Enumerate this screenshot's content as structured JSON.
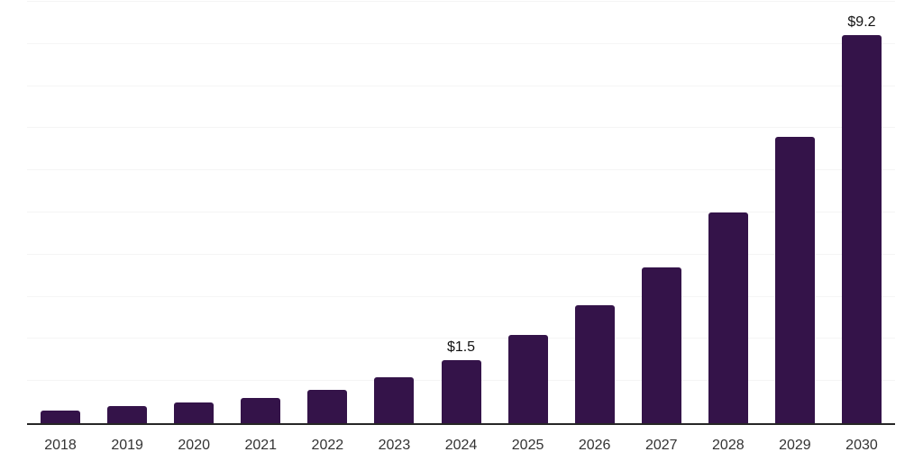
{
  "chart_data": {
    "type": "bar",
    "title": "",
    "xlabel": "",
    "ylabel": "",
    "categories": [
      "2018",
      "2019",
      "2020",
      "2021",
      "2022",
      "2023",
      "2024",
      "2025",
      "2026",
      "2027",
      "2028",
      "2029",
      "2030"
    ],
    "values": [
      0.3,
      0.4,
      0.5,
      0.6,
      0.8,
      1.1,
      1.5,
      2.1,
      2.8,
      3.7,
      5.0,
      6.8,
      9.2
    ],
    "point_labels": [
      "",
      "",
      "",
      "",
      "",
      "",
      "$1.5",
      "",
      "",
      "",
      "",
      "",
      "$9.2"
    ],
    "ylim": [
      0,
      10
    ],
    "gridline_step": 1,
    "grid": "horizontal",
    "legend": "none",
    "y_tick_labels_shown": false,
    "colors": {
      "bar": "#341349",
      "gridline": "#f5f5f5",
      "axis_line": "#262626",
      "tick_label": "#333333",
      "annotation": "#111111",
      "background": "#ffffff"
    }
  }
}
